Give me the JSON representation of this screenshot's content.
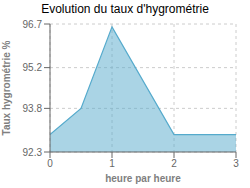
{
  "chart_data": {
    "type": "area",
    "title": "Evolution du taux d'hygrométrie",
    "xlabel": "heure par heure",
    "ylabel": "Taux hygrométrie %",
    "x": [
      0,
      0.5,
      1,
      2,
      3
    ],
    "values": [
      92.9,
      93.8,
      96.6,
      92.9,
      92.9
    ],
    "color": "#55aacc",
    "xlim": [
      0,
      3
    ],
    "xticks": [
      0,
      1,
      2,
      3
    ],
    "ylim": [
      92.3,
      96.7
    ],
    "yticks": [
      92.3,
      93.8,
      95.2,
      96.7
    ],
    "grid": true
  }
}
